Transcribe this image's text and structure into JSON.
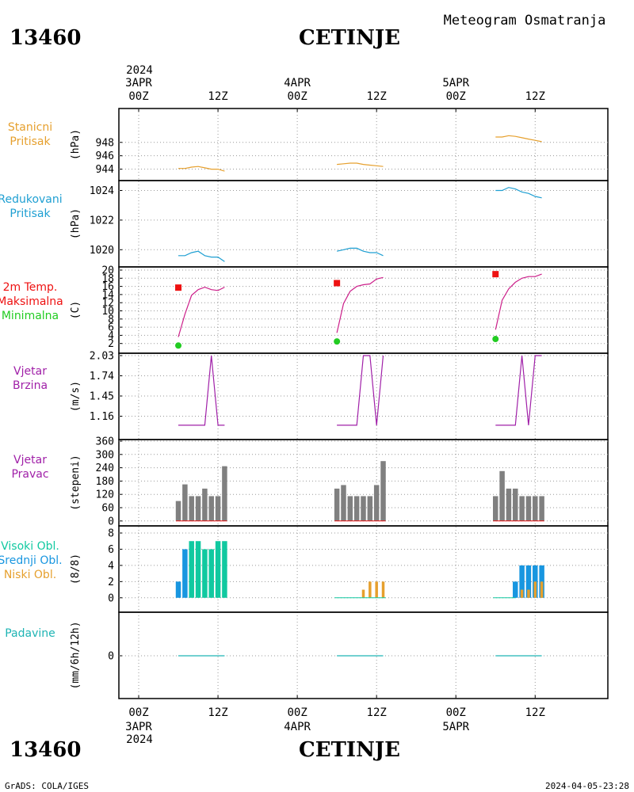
{
  "header": {
    "station_id": "13460",
    "station_name": "CETINJE",
    "product_title": "Meteogram Osmatranja"
  },
  "footer": {
    "station_id": "13460",
    "station_name": "CETINJE",
    "credit": "GrADS: COLA/IGES",
    "timestamp": "2024-04-05-23:28"
  },
  "time_axis": {
    "top_year": "2024",
    "bottom_year": "2024",
    "days": [
      {
        "label": "3APR",
        "t": 0
      },
      {
        "label": "4APR",
        "t": 24
      },
      {
        "label": "5APR",
        "t": 48
      }
    ],
    "hour_ticks": [
      {
        "label": "00Z",
        "t": 0
      },
      {
        "label": "12Z",
        "t": 12
      },
      {
        "label": "00Z",
        "t": 24
      },
      {
        "label": "12Z",
        "t": 36
      },
      {
        "label": "00Z",
        "t": 48
      },
      {
        "label": "12Z",
        "t": 60
      }
    ],
    "range": [
      -3,
      71
    ]
  },
  "colors": {
    "pressure": "#e6a02e",
    "reduced": "#1e9fd2",
    "temp_line": "#cc1f8a",
    "tmax": "#ee1111",
    "tmin": "#22cc22",
    "wind": "#a020a8",
    "bar_gray": "#808080",
    "high_cloud": "#10c9a0",
    "mid_cloud": "#1896e0",
    "low_cloud": "#e6a02e",
    "precip": "#1eb4b4"
  },
  "chart_data": [
    {
      "type": "line",
      "panel": "station_pressure",
      "label_lines": [
        "Stanicni",
        "Pritisak"
      ],
      "ylabel": "(hPa)",
      "ylim": [
        943,
        952
      ],
      "yticks": [
        944,
        946,
        948
      ],
      "series": [
        {
          "x": [
            6,
            7,
            8,
            9,
            10,
            11,
            12,
            13
          ],
          "values": [
            944.1,
            944.1,
            944.3,
            944.4,
            944.2,
            944.0,
            944.0,
            943.7
          ]
        },
        {
          "x": [
            30,
            31,
            32,
            33,
            34,
            35,
            36,
            37
          ],
          "values": [
            944.7,
            944.8,
            944.9,
            944.9,
            944.7,
            944.6,
            944.5,
            944.4
          ]
        },
        {
          "x": [
            54,
            55,
            56,
            57,
            58,
            59,
            60,
            61
          ],
          "values": [
            948.8,
            948.8,
            949.0,
            948.9,
            948.7,
            948.5,
            948.3,
            948.1
          ]
        }
      ]
    },
    {
      "type": "line",
      "panel": "reduced_pressure",
      "label_lines": [
        "Redukovani",
        "Pritisak"
      ],
      "ylabel": "(hPa)",
      "ylim": [
        1019,
        1024.4
      ],
      "yticks": [
        1020,
        1022,
        1024
      ],
      "series": [
        {
          "x": [
            6,
            7,
            8,
            9,
            10,
            11,
            12,
            13
          ],
          "values": [
            1019.6,
            1019.6,
            1019.8,
            1019.9,
            1019.6,
            1019.5,
            1019.5,
            1019.2
          ]
        },
        {
          "x": [
            30,
            31,
            32,
            33,
            34,
            35,
            36,
            37
          ],
          "values": [
            1019.9,
            1020.0,
            1020.1,
            1020.1,
            1019.9,
            1019.8,
            1019.8,
            1019.6
          ]
        },
        {
          "x": [
            54,
            55,
            56,
            57,
            58,
            59,
            60,
            61
          ],
          "values": [
            1024.0,
            1024.0,
            1024.2,
            1024.1,
            1023.9,
            1023.8,
            1023.6,
            1023.5
          ]
        }
      ]
    },
    {
      "type": "line",
      "panel": "temperature",
      "label_lines": [
        "2m Temp.",
        "Maksimalna",
        "Minimalna"
      ],
      "label_colors": [
        "tmax",
        "tmax",
        "tmin"
      ],
      "ylabel": "(C)",
      "ylim": [
        0,
        20
      ],
      "yticks": [
        2,
        4,
        6,
        8,
        10,
        12,
        14,
        16,
        18,
        20
      ],
      "series": [
        {
          "x": [
            6,
            7,
            8,
            9,
            10,
            11,
            12,
            13
          ],
          "values": [
            3.6,
            9.2,
            13.8,
            15.2,
            15.8,
            15.2,
            15.0,
            15.8
          ]
        },
        {
          "x": [
            30,
            31,
            32,
            33,
            34,
            35,
            36,
            37
          ],
          "values": [
            4.6,
            11.8,
            14.8,
            16.0,
            16.4,
            16.6,
            17.8,
            18.2
          ]
        },
        {
          "x": [
            54,
            55,
            56,
            57,
            58,
            59,
            60,
            61
          ],
          "values": [
            5.4,
            12.6,
            15.4,
            17.0,
            18.0,
            18.4,
            18.4,
            19.0
          ]
        }
      ],
      "tmax": [
        {
          "x": 6,
          "value": 15.7
        },
        {
          "x": 30,
          "value": 16.8
        },
        {
          "x": 54,
          "value": 19.0
        }
      ],
      "tmin": [
        {
          "x": 6,
          "value": 1.5
        },
        {
          "x": 30,
          "value": 2.5
        },
        {
          "x": 54,
          "value": 3.1
        }
      ]
    },
    {
      "type": "line",
      "panel": "wind_speed",
      "label_lines": [
        "Vjetar",
        "Brzina"
      ],
      "ylabel": "(m/s)",
      "ylim": [
        0.87,
        2.03
      ],
      "yticks": [
        1.16,
        1.45,
        1.74,
        2.03
      ],
      "ytick_labels": [
        "1.16",
        "1.45",
        "1.74",
        "2.03"
      ],
      "series": [
        {
          "x": [
            6,
            7,
            8,
            9,
            10,
            11,
            12,
            13
          ],
          "values": [
            1.03,
            1.03,
            1.03,
            1.03,
            1.03,
            2.03,
            1.03,
            1.03
          ]
        },
        {
          "x": [
            30,
            31,
            32,
            33,
            34,
            35,
            36,
            37
          ],
          "values": [
            1.03,
            1.03,
            1.03,
            1.03,
            2.03,
            2.03,
            1.03,
            2.03
          ]
        },
        {
          "x": [
            54,
            55,
            56,
            57,
            58,
            59,
            60,
            61
          ],
          "values": [
            1.03,
            1.03,
            1.03,
            1.03,
            2.03,
            1.03,
            2.03,
            2.03
          ]
        }
      ]
    },
    {
      "type": "bar",
      "panel": "wind_direction",
      "label_lines": [
        "Vjetar",
        "Pravac"
      ],
      "ylabel": "(stepeni)",
      "ylim": [
        -15,
        360
      ],
      "yticks": [
        0,
        60,
        120,
        180,
        240,
        300,
        360
      ],
      "x": [
        6,
        7,
        8,
        9,
        10,
        11,
        12,
        13,
        30,
        31,
        32,
        33,
        34,
        35,
        36,
        37,
        54,
        55,
        56,
        57,
        58,
        59,
        60,
        61
      ],
      "values": [
        90,
        165,
        112,
        112,
        146,
        112,
        112,
        247,
        146,
        162,
        112,
        112,
        112,
        112,
        162,
        270,
        112,
        225,
        146,
        146,
        112,
        112,
        112,
        112
      ]
    },
    {
      "type": "bar",
      "panel": "cloud_cover",
      "label_lines": [
        "Visoki Obl.",
        "Srednji Obl.",
        "Niski Obl."
      ],
      "label_colors": [
        "high_cloud",
        "mid_cloud",
        "low_cloud"
      ],
      "ylabel": "(8/8)",
      "ylim": [
        -1,
        8
      ],
      "yticks": [
        0,
        2,
        4,
        6,
        8
      ],
      "x": [
        6,
        7,
        8,
        9,
        10,
        11,
        12,
        13,
        30,
        31,
        32,
        33,
        34,
        35,
        36,
        37,
        54,
        55,
        56,
        57,
        58,
        59,
        60,
        61
      ],
      "series": [
        {
          "name": "Visoki Obl.",
          "color": "high_cloud",
          "values": [
            0,
            0,
            7,
            7,
            6,
            6,
            7,
            7,
            0,
            0,
            0,
            0,
            0,
            0,
            0,
            0,
            0,
            0,
            0,
            0,
            0,
            0,
            0,
            0
          ]
        },
        {
          "name": "Srednji Obl.",
          "color": "mid_cloud",
          "values": [
            2,
            6,
            0,
            0,
            0,
            0,
            0,
            0,
            0,
            0,
            0,
            0,
            0,
            0,
            0,
            0,
            0,
            0,
            0,
            2,
            4,
            4,
            4,
            4
          ]
        },
        {
          "name": "Niski Obl.",
          "color": "low_cloud",
          "values": [
            0,
            0,
            0,
            0,
            0,
            0,
            0,
            0,
            0,
            0,
            0,
            0,
            1,
            2,
            2,
            2,
            0,
            0,
            0,
            0,
            1,
            1,
            2,
            2
          ]
        }
      ]
    },
    {
      "type": "line",
      "panel": "precipitation",
      "label_lines": [
        "Padavine"
      ],
      "ylabel": "(mm/6h/12h)",
      "ylim": [
        -1,
        1
      ],
      "yticks": [
        0
      ],
      "series": [
        {
          "x": [
            6,
            13
          ],
          "values": [
            0,
            0
          ]
        },
        {
          "x": [
            30,
            37
          ],
          "values": [
            0,
            0
          ]
        },
        {
          "x": [
            54,
            61
          ],
          "values": [
            0,
            0
          ]
        }
      ]
    }
  ]
}
